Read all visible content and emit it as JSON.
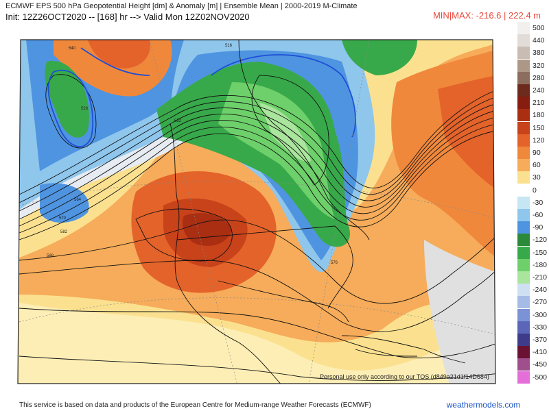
{
  "header": {
    "line1": "ECMWF EPS 500 hPa Geopotential Height [dm] & Anomaly [m] | Ensemble Mean | 2000-2019 M-Climate",
    "line2": "Init: 12Z26OCT2020 -- [168] hr --> Valid Mon 12Z02NOV2020",
    "minmax": "MIN|MAX: -216.6 | 222.4 m"
  },
  "map": {
    "tos_notice": "Personal use only according to our TOS (d849a21d1f14D684)",
    "contour_labels": [
      "540",
      "516",
      "528",
      "552",
      "564",
      "570",
      "576",
      "582",
      "588"
    ]
  },
  "legend": [
    {
      "label": "500",
      "color": "#f2efef"
    },
    {
      "label": "440",
      "color": "#e2dcd8"
    },
    {
      "label": "380",
      "color": "#c9bcb3"
    },
    {
      "label": "320",
      "color": "#ad9888"
    },
    {
      "label": "280",
      "color": "#8c6e5f"
    },
    {
      "label": "240",
      "color": "#6d2b1d"
    },
    {
      "label": "210",
      "color": "#861d10"
    },
    {
      "label": "180",
      "color": "#a92e12"
    },
    {
      "label": "150",
      "color": "#c8421a"
    },
    {
      "label": "120",
      "color": "#e3632a"
    },
    {
      "label": "90",
      "color": "#f0883c"
    },
    {
      "label": "60",
      "color": "#f6ac5a"
    },
    {
      "label": "30",
      "color": "#fbe18f"
    },
    {
      "label": "0",
      "color": "#ffffff"
    },
    {
      "label": "-30",
      "color": "#c7e6f4"
    },
    {
      "label": "-60",
      "color": "#8fc6ec"
    },
    {
      "label": "-90",
      "color": "#4f94e0"
    },
    {
      "label": "-120",
      "color": "#2a8a3a"
    },
    {
      "label": "-150",
      "color": "#38a94a"
    },
    {
      "label": "-180",
      "color": "#6ed06a"
    },
    {
      "label": "-210",
      "color": "#a9e59c"
    },
    {
      "label": "-240",
      "color": "#cfe0f2"
    },
    {
      "label": "-270",
      "color": "#a5bde6"
    },
    {
      "label": "-300",
      "color": "#7b93d6"
    },
    {
      "label": "-330",
      "color": "#5c66b8"
    },
    {
      "label": "-370",
      "color": "#3d3b8a"
    },
    {
      "label": "-410",
      "color": "#6b1232"
    },
    {
      "label": "-450",
      "color": "#a04f8d"
    },
    {
      "label": "-500",
      "color": "#e46fd9"
    }
  ],
  "footer": {
    "credit": "This service is based on data and products of the European Centre for Medium-range Weather Forecasts (ECMWF)",
    "brand": "weathermodels.com"
  }
}
